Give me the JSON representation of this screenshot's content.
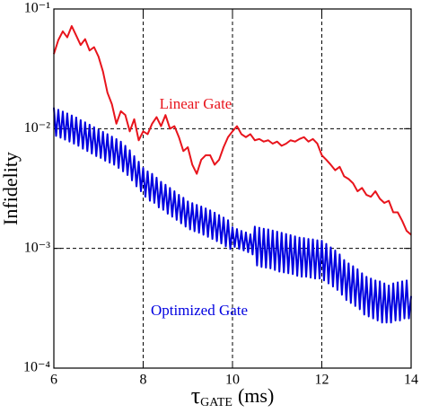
{
  "chart_data": {
    "type": "line",
    "y_label": "Infidelity",
    "x_label": {
      "symbol": "τ",
      "subscript": "GATE",
      "unit": "(ms)"
    },
    "xlim": [
      6,
      14
    ],
    "xticks": [
      6,
      8,
      10,
      12,
      14
    ],
    "ylim": [
      0.0001,
      0.1
    ],
    "ylog": true,
    "yticks": [
      {
        "value": 0.0001,
        "label": "10⁻⁴"
      },
      {
        "value": 0.001,
        "label": "10⁻³"
      },
      {
        "value": 0.01,
        "label": "10⁻²"
      },
      {
        "value": 0.1,
        "label": "10⁻¹"
      }
    ],
    "grid": true,
    "annotations": [
      {
        "text": "Linear Gate",
        "color": "#e8141c"
      },
      {
        "text": "Optimized Gate",
        "color": "#0000e0"
      }
    ],
    "series": [
      {
        "name": "Linear Gate",
        "color": "#e8141c",
        "x": [
          6,
          6.1,
          6.2,
          6.3,
          6.4,
          6.5,
          6.6,
          6.7,
          6.8,
          6.9,
          7,
          7.1,
          7.2,
          7.3,
          7.4,
          7.5,
          7.6,
          7.7,
          7.8,
          7.9,
          8,
          8.1,
          8.2,
          8.3,
          8.4,
          8.5,
          8.6,
          8.7,
          8.8,
          8.9,
          9,
          9.1,
          9.2,
          9.3,
          9.4,
          9.5,
          9.6,
          9.7,
          9.8,
          9.9,
          10,
          10.1,
          10.2,
          10.3,
          10.4,
          10.5,
          10.6,
          10.7,
          10.8,
          10.9,
          11,
          11.1,
          11.2,
          11.3,
          11.4,
          11.5,
          11.6,
          11.7,
          11.8,
          11.9,
          12,
          12.1,
          12.2,
          12.3,
          12.4,
          12.5,
          12.6,
          12.7,
          12.8,
          12.9,
          13,
          13.1,
          13.2,
          13.3,
          13.4,
          13.5,
          13.6,
          13.7,
          13.8,
          13.9,
          14
        ],
        "values": [
          0.042,
          0.055,
          0.065,
          0.058,
          0.072,
          0.06,
          0.05,
          0.056,
          0.045,
          0.048,
          0.04,
          0.03,
          0.02,
          0.016,
          0.011,
          0.014,
          0.013,
          0.0095,
          0.012,
          0.008,
          0.0095,
          0.009,
          0.011,
          0.0125,
          0.0105,
          0.013,
          0.01,
          0.0105,
          0.0085,
          0.0065,
          0.007,
          0.005,
          0.0042,
          0.0055,
          0.006,
          0.006,
          0.005,
          0.0055,
          0.007,
          0.0085,
          0.0095,
          0.0105,
          0.009,
          0.0085,
          0.009,
          0.008,
          0.0082,
          0.0078,
          0.008,
          0.0075,
          0.0078,
          0.0072,
          0.0075,
          0.008,
          0.0078,
          0.0082,
          0.0085,
          0.0078,
          0.0082,
          0.0075,
          0.006,
          0.0055,
          0.005,
          0.0045,
          0.0048,
          0.004,
          0.0038,
          0.0035,
          0.003,
          0.0032,
          0.0028,
          0.0027,
          0.003,
          0.0026,
          0.0024,
          0.0025,
          0.002,
          0.002,
          0.0017,
          0.0014,
          0.0013
        ]
      },
      {
        "name": "Optimized Gate",
        "color": "#0000e0",
        "x": [
          6,
          6.05,
          6.1,
          6.15,
          6.2,
          6.25,
          6.3,
          6.35,
          6.4,
          6.45,
          6.5,
          6.55,
          6.6,
          6.65,
          6.7,
          6.75,
          6.8,
          6.85,
          6.9,
          6.95,
          7,
          7.05,
          7.1,
          7.15,
          7.2,
          7.25,
          7.3,
          7.35,
          7.4,
          7.45,
          7.5,
          7.55,
          7.6,
          7.65,
          7.7,
          7.75,
          7.8,
          7.85,
          7.9,
          7.95,
          8,
          8.05,
          8.1,
          8.15,
          8.2,
          8.25,
          8.3,
          8.35,
          8.4,
          8.45,
          8.5,
          8.55,
          8.6,
          8.65,
          8.7,
          8.75,
          8.8,
          8.85,
          8.9,
          8.95,
          9,
          9.05,
          9.1,
          9.15,
          9.2,
          9.25,
          9.3,
          9.35,
          9.4,
          9.45,
          9.5,
          9.55,
          9.6,
          9.65,
          9.7,
          9.75,
          9.8,
          9.85,
          9.9,
          9.95,
          10,
          10.05,
          10.1,
          10.15,
          10.2,
          10.25,
          10.3,
          10.35,
          10.4,
          10.45,
          10.5,
          10.55,
          10.6,
          10.65,
          10.7,
          10.75,
          10.8,
          10.85,
          10.9,
          10.95,
          11,
          11.05,
          11.1,
          11.15,
          11.2,
          11.25,
          11.3,
          11.35,
          11.4,
          11.45,
          11.5,
          11.55,
          11.6,
          11.65,
          11.7,
          11.75,
          11.8,
          11.85,
          11.9,
          11.95,
          12,
          12.05,
          12.1,
          12.15,
          12.2,
          12.25,
          12.3,
          12.35,
          12.4,
          12.45,
          12.5,
          12.55,
          12.6,
          12.65,
          12.7,
          12.75,
          12.8,
          12.85,
          12.9,
          12.95,
          13,
          13.05,
          13.1,
          13.15,
          13.2,
          13.25,
          13.3,
          13.35,
          13.4,
          13.45,
          13.5,
          13.55,
          13.6,
          13.65,
          13.7,
          13.75,
          13.8,
          13.85,
          13.9,
          13.95,
          14
        ],
        "values": [
          0.015,
          0.0087,
          0.0144,
          0.0084,
          0.0139,
          0.0081,
          0.0134,
          0.0078,
          0.0129,
          0.0075,
          0.0124,
          0.0072,
          0.0118,
          0.0068,
          0.0113,
          0.0065,
          0.0108,
          0.0062,
          0.0103,
          0.0059,
          0.0098,
          0.0057,
          0.0094,
          0.0054,
          0.009,
          0.0052,
          0.0086,
          0.005,
          0.0082,
          0.0047,
          0.0078,
          0.0044,
          0.0072,
          0.0041,
          0.0066,
          0.0037,
          0.0059,
          0.0033,
          0.0053,
          0.003,
          0.0047,
          0.0027,
          0.0044,
          0.0025,
          0.0042,
          0.0024,
          0.0039,
          0.0022,
          0.0036,
          0.0021,
          0.0034,
          0.00195,
          0.0032,
          0.00184,
          0.003,
          0.00173,
          0.0028,
          0.00162,
          0.00265,
          0.00152,
          0.00247,
          0.00144,
          0.00239,
          0.00139,
          0.00231,
          0.00135,
          0.00224,
          0.0013,
          0.00216,
          0.00125,
          0.00208,
          0.0012,
          0.00199,
          0.00115,
          0.0019,
          0.0011,
          0.00181,
          0.00104,
          0.00172,
          0.00099,
          0.0015,
          0.00103,
          0.00145,
          0.00099,
          0.0014,
          0.00096,
          0.00136,
          0.00093,
          0.00131,
          0.00089,
          0.00152,
          0.00072,
          0.00149,
          0.0007,
          0.00146,
          0.00069,
          0.00144,
          0.00068,
          0.00141,
          0.00066,
          0.00138,
          0.00064,
          0.00135,
          0.00063,
          0.00132,
          0.00062,
          0.00129,
          0.00061,
          0.00126,
          0.00059,
          0.00123,
          0.00058,
          0.00122,
          0.00058,
          0.0012,
          0.00057,
          0.00119,
          0.00056,
          0.00117,
          0.00056,
          0.00116,
          0.00054,
          0.00109,
          0.00051,
          0.00102,
          0.00048,
          0.00096,
          0.00045,
          0.00089,
          0.00041,
          0.0008,
          0.00037,
          0.00075,
          0.00035,
          0.00071,
          0.00033,
          0.00067,
          0.00031,
          0.00062,
          0.00028,
          0.00058,
          0.00027,
          0.00056,
          0.00026,
          0.00054,
          0.00025,
          0.00053,
          0.00024,
          0.00051,
          0.00024,
          0.00049,
          0.00024,
          0.00051,
          0.00025,
          0.00052,
          0.00025,
          0.00053,
          0.00026,
          0.00054,
          0.00026,
          0.0004
        ]
      }
    ]
  }
}
